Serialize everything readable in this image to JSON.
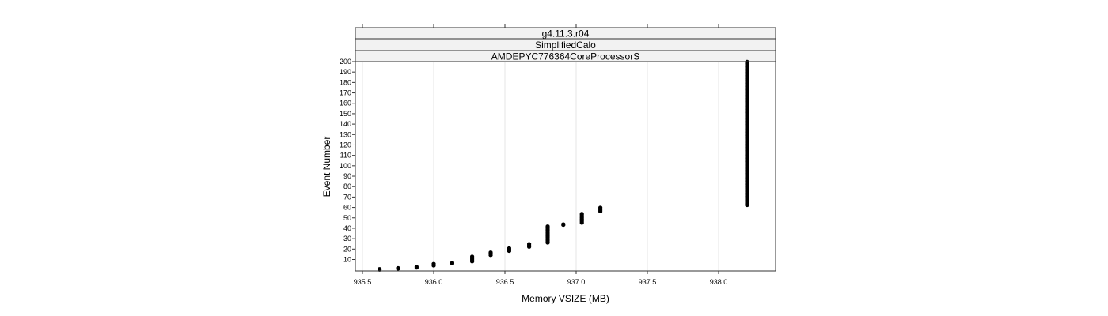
{
  "chart_data": {
    "type": "scatter",
    "strips": [
      "g4.11.3.r04",
      "SimplifiedCalo",
      "AMDEPYC776364CoreProcessorS"
    ],
    "xlabel": "Memory VSIZE (MB)",
    "ylabel": "Event Number",
    "xlim": [
      935.45,
      938.4
    ],
    "ylim": [
      -1,
      200
    ],
    "xticks": [
      935.5,
      936.0,
      936.5,
      937.0,
      937.5,
      938.0
    ],
    "xtick_labels": [
      "935.5",
      "936.0",
      "936.5",
      "937.0",
      "937.5",
      "938.0"
    ],
    "yticks": [
      10,
      20,
      30,
      40,
      50,
      60,
      70,
      80,
      90,
      100,
      110,
      120,
      130,
      140,
      150,
      160,
      170,
      180,
      190,
      200
    ],
    "ytick_labels": [
      "10",
      "20",
      "30",
      "40",
      "50",
      "60",
      "70",
      "80",
      "90",
      "100",
      "110",
      "120",
      "130",
      "140",
      "150",
      "160",
      "170",
      "180",
      "190",
      "200"
    ],
    "grid": "vertical",
    "point_color": "#000000",
    "point_groups": [
      {
        "x": 935.62,
        "y_from": 0,
        "y_to": 1
      },
      {
        "x": 935.75,
        "y_from": 1,
        "y_to": 2
      },
      {
        "x": 935.88,
        "y_from": 2,
        "y_to": 3
      },
      {
        "x": 936.0,
        "y_from": 4,
        "y_to": 6
      },
      {
        "x": 936.13,
        "y_from": 6,
        "y_to": 7
      },
      {
        "x": 936.27,
        "y_from": 8,
        "y_to": 13
      },
      {
        "x": 936.4,
        "y_from": 14,
        "y_to": 17
      },
      {
        "x": 936.53,
        "y_from": 18,
        "y_to": 21
      },
      {
        "x": 936.67,
        "y_from": 22,
        "y_to": 25
      },
      {
        "x": 936.8,
        "y_from": 26,
        "y_to": 42
      },
      {
        "x": 936.91,
        "y_from": 43,
        "y_to": 44
      },
      {
        "x": 937.04,
        "y_from": 45,
        "y_to": 54
      },
      {
        "x": 937.17,
        "y_from": 56,
        "y_to": 60
      },
      {
        "x": 938.2,
        "y_from": 62,
        "y_to": 200
      }
    ]
  }
}
